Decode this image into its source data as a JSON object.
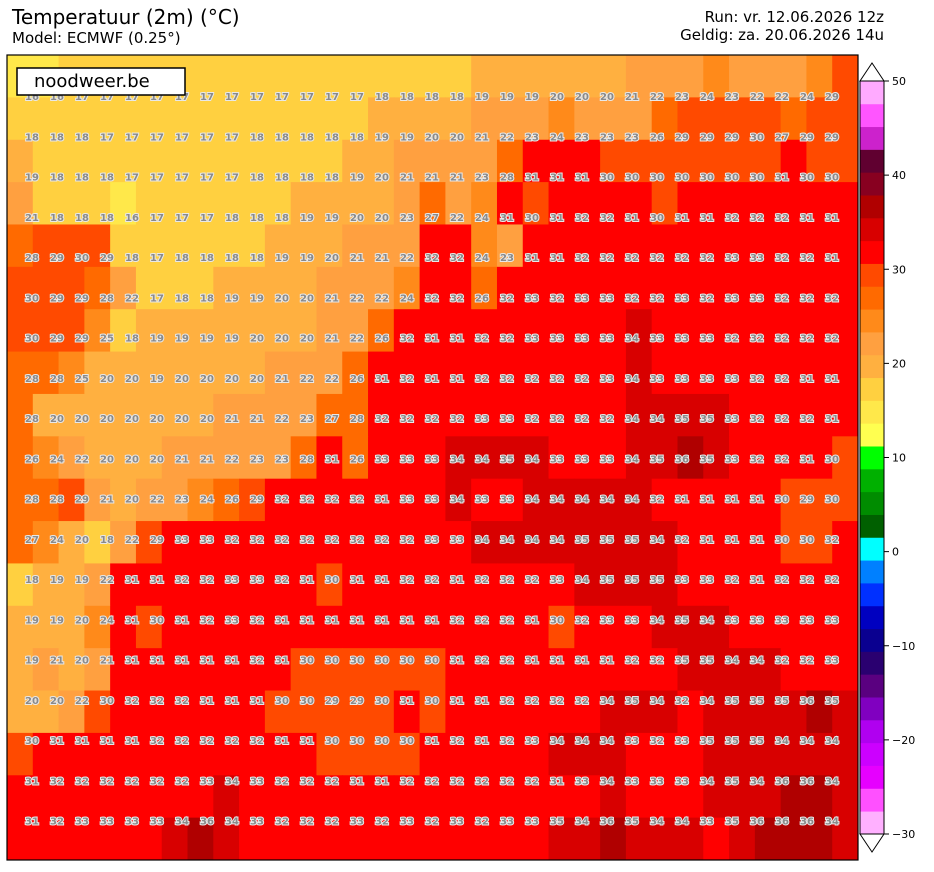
{
  "header": {
    "title": "Temperatuur (2m) (°C)",
    "model": "Model: ECMWF (0.25°)",
    "run": "Run: vr. 12.06.2026 12z",
    "valid": "Geldig: za. 20.06.2026 14u"
  },
  "watermark": "noodweer.be",
  "colorbar": {
    "lim": [
      -30,
      50
    ],
    "ticks": [
      50,
      40,
      30,
      20,
      10,
      0,
      {
        "value": -10,
        "label": "−10"
      },
      {
        "value": -20,
        "label": "−20"
      },
      {
        "value": -30,
        "label": "−30"
      }
    ],
    "colors": [
      "#ffb0ff",
      "#ff50ff",
      "#e600ff",
      "#cc00ff",
      "#b000f0",
      "#8000c0",
      "#5a0080",
      "#2a0070",
      "#0a0090",
      "#0000c0",
      "#0030ff",
      "#0080ff",
      "#00ffff",
      "#006000",
      "#008c00",
      "#00b000",
      "#00ff00",
      "#ffff50",
      "#ffe84a",
      "#ffd040",
      "#ffb040",
      "#ffa040",
      "#ff8a1a",
      "#ff6a00",
      "#ff4a00",
      "#ff0000",
      "#d80000",
      "#b00000",
      "#880020",
      "#600030",
      "#cc22cc",
      "#ff55ff",
      "#ffaaff"
    ]
  },
  "grid": {
    "rows": [
      [
        16,
        16,
        17,
        17,
        17,
        17,
        17,
        17,
        17,
        17,
        17,
        17,
        17,
        17,
        18,
        18,
        18,
        18,
        19,
        19,
        19,
        20,
        20,
        20,
        21,
        22,
        23,
        24,
        23,
        22,
        22,
        24,
        29
      ],
      [
        18,
        18,
        18,
        17,
        17,
        17,
        17,
        17,
        17,
        18,
        18,
        18,
        18,
        18,
        19,
        19,
        20,
        20,
        21,
        22,
        23,
        24,
        23,
        23,
        23,
        26,
        29,
        29,
        29,
        30,
        27,
        29,
        29
      ],
      [
        19,
        18,
        18,
        18,
        17,
        17,
        17,
        17,
        17,
        18,
        18,
        18,
        18,
        19,
        20,
        21,
        21,
        21,
        23,
        28,
        31,
        31,
        31,
        30,
        30,
        30,
        30,
        30,
        30,
        30,
        31,
        30,
        30
      ],
      [
        21,
        18,
        18,
        18,
        16,
        17,
        17,
        17,
        18,
        18,
        18,
        19,
        19,
        20,
        20,
        23,
        27,
        22,
        24,
        31,
        30,
        31,
        32,
        32,
        31,
        30,
        31,
        31,
        32,
        32,
        32,
        31,
        31
      ],
      [
        28,
        29,
        30,
        29,
        18,
        17,
        18,
        18,
        18,
        18,
        19,
        19,
        20,
        21,
        21,
        22,
        32,
        32,
        24,
        23,
        31,
        31,
        32,
        32,
        32,
        32,
        32,
        32,
        33,
        33,
        32,
        32,
        31
      ],
      [
        30,
        29,
        29,
        28,
        22,
        17,
        18,
        18,
        19,
        19,
        20,
        20,
        21,
        22,
        22,
        24,
        32,
        32,
        26,
        32,
        33,
        32,
        33,
        33,
        32,
        32,
        33,
        32,
        33,
        33,
        32,
        32,
        32
      ],
      [
        30,
        29,
        29,
        25,
        18,
        19,
        19,
        19,
        19,
        20,
        20,
        20,
        21,
        22,
        26,
        32,
        31,
        31,
        32,
        32,
        33,
        33,
        33,
        33,
        34,
        33,
        33,
        33,
        32,
        32,
        32,
        32,
        32
      ],
      [
        28,
        28,
        25,
        20,
        20,
        19,
        20,
        20,
        20,
        20,
        21,
        22,
        22,
        26,
        31,
        32,
        31,
        31,
        32,
        32,
        32,
        32,
        32,
        33,
        34,
        33,
        33,
        33,
        33,
        32,
        32,
        31,
        31
      ],
      [
        28,
        20,
        20,
        20,
        20,
        20,
        20,
        20,
        21,
        21,
        22,
        23,
        27,
        28,
        32,
        32,
        32,
        32,
        33,
        33,
        32,
        32,
        32,
        32,
        34,
        34,
        35,
        35,
        33,
        32,
        32,
        32,
        31
      ],
      [
        26,
        24,
        22,
        20,
        20,
        20,
        21,
        21,
        22,
        23,
        23,
        28,
        31,
        26,
        33,
        33,
        33,
        34,
        34,
        35,
        34,
        33,
        33,
        33,
        34,
        35,
        36,
        35,
        33,
        32,
        32,
        31,
        30
      ],
      [
        28,
        28,
        29,
        21,
        20,
        22,
        23,
        24,
        26,
        29,
        32,
        32,
        32,
        32,
        31,
        33,
        33,
        34,
        33,
        33,
        34,
        34,
        34,
        34,
        34,
        32,
        31,
        31,
        31,
        31,
        30,
        29,
        30
      ],
      [
        27,
        24,
        20,
        18,
        22,
        29,
        33,
        33,
        32,
        32,
        32,
        32,
        32,
        32,
        32,
        32,
        33,
        33,
        34,
        34,
        34,
        34,
        35,
        35,
        35,
        34,
        32,
        31,
        31,
        31,
        30,
        30,
        32
      ],
      [
        18,
        19,
        19,
        22,
        31,
        31,
        32,
        32,
        33,
        33,
        32,
        31,
        30,
        31,
        31,
        32,
        32,
        31,
        32,
        32,
        32,
        33,
        34,
        35,
        35,
        35,
        33,
        33,
        32,
        31,
        32,
        32,
        32
      ],
      [
        19,
        19,
        20,
        24,
        31,
        30,
        31,
        32,
        33,
        32,
        31,
        31,
        31,
        31,
        31,
        31,
        31,
        32,
        32,
        32,
        31,
        30,
        32,
        33,
        33,
        34,
        35,
        34,
        33,
        33,
        33,
        33,
        33
      ],
      [
        19,
        21,
        20,
        21,
        31,
        31,
        31,
        31,
        31,
        32,
        31,
        30,
        30,
        30,
        30,
        30,
        30,
        31,
        32,
        32,
        31,
        31,
        31,
        31,
        32,
        32,
        35,
        35,
        34,
        34,
        32,
        32,
        33
      ],
      [
        20,
        20,
        22,
        30,
        32,
        32,
        32,
        31,
        31,
        31,
        30,
        30,
        29,
        29,
        30,
        31,
        30,
        31,
        31,
        32,
        32,
        32,
        32,
        34,
        35,
        34,
        32,
        34,
        35,
        35,
        35,
        36,
        35
      ],
      [
        30,
        31,
        31,
        31,
        31,
        32,
        32,
        32,
        32,
        32,
        31,
        31,
        30,
        30,
        30,
        30,
        31,
        32,
        31,
        32,
        33,
        34,
        34,
        34,
        33,
        32,
        33,
        35,
        35,
        35,
        34,
        34,
        34
      ],
      [
        31,
        32,
        32,
        32,
        32,
        32,
        32,
        33,
        34,
        33,
        32,
        32,
        32,
        31,
        31,
        32,
        32,
        32,
        32,
        32,
        32,
        31,
        33,
        34,
        33,
        33,
        33,
        34,
        35,
        34,
        36,
        36,
        34
      ],
      [
        31,
        32,
        33,
        33,
        33,
        33,
        34,
        36,
        34,
        33,
        32,
        32,
        32,
        33,
        32,
        33,
        32,
        33,
        32,
        33,
        33,
        35,
        34,
        36,
        35,
        34,
        34,
        33,
        35,
        36,
        36,
        36,
        34
      ]
    ]
  }
}
